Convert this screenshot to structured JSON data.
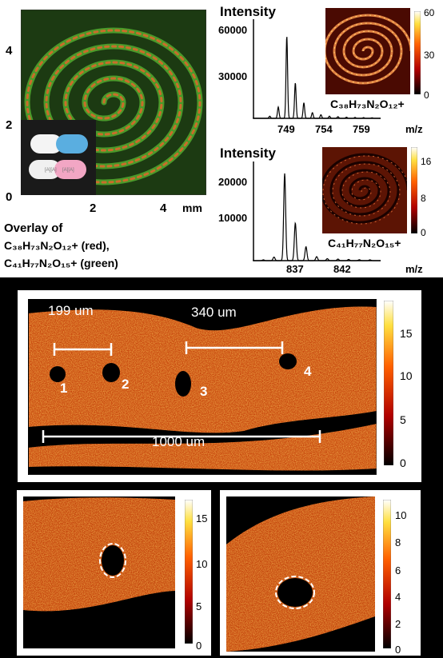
{
  "panel_a": {
    "y_ticks": [
      "4",
      "2",
      "0"
    ],
    "x_ticks": [
      "2",
      "4"
    ],
    "x_unit": "mm",
    "caption_line1": "Overlay of",
    "caption_line2": "C₃₈H₇₃N₂O₁₂+ (red),",
    "caption_line3": "C₄₁H₇₇N₂O₁₅+ (green)"
  },
  "spectrum_1": {
    "ylabel": "Intensity",
    "y_ticks": [
      "60000",
      "30000"
    ],
    "x_ticks": [
      "749",
      "754",
      "759"
    ],
    "x_unit": "m/z",
    "formula": "C₃₈H₇₃N₂O₁₂+",
    "colorbar_ticks": [
      "60",
      "30",
      "0"
    ]
  },
  "spectrum_2": {
    "ylabel": "Intensity",
    "y_ticks": [
      "20000",
      "10000"
    ],
    "x_ticks": [
      "837",
      "842"
    ],
    "x_unit": "m/z",
    "formula": "C₄₁H₇₇N₂O₁₅+",
    "colorbar_ticks": [
      "16",
      "8",
      "0"
    ]
  },
  "panel_b": {
    "scale_199": "199 um",
    "scale_340": "340 um",
    "scale_1000": "1000 um",
    "hole_labels": [
      "1",
      "2",
      "3",
      "4"
    ],
    "colorbar_ticks": [
      "15",
      "10",
      "5",
      "0"
    ]
  },
  "panel_c1": {
    "colorbar_ticks": [
      "15",
      "10",
      "5",
      "0"
    ]
  },
  "panel_c2": {
    "colorbar_ticks": [
      "10",
      "8",
      "6",
      "4",
      "2",
      "0"
    ]
  },
  "chart_data": [
    {
      "type": "line",
      "ylabel": "Intensity",
      "xlabel": "m/z",
      "xlim": [
        745,
        760
      ],
      "ylim": [
        0,
        70000
      ],
      "x": [
        746,
        747,
        748,
        749,
        750,
        751,
        752,
        753,
        754,
        755,
        756,
        757,
        758,
        759
      ],
      "values": [
        0,
        1500,
        8000,
        58000,
        25000,
        11000,
        4000,
        2500,
        1500,
        1200,
        800,
        600,
        500,
        400
      ]
    },
    {
      "type": "line",
      "ylabel": "Intensity",
      "xlabel": "m/z",
      "xlim": [
        834,
        846
      ],
      "ylim": [
        0,
        25000
      ],
      "x": [
        835,
        836,
        837,
        838,
        839,
        840,
        841,
        842,
        843,
        844,
        845
      ],
      "values": [
        200,
        900,
        22000,
        9500,
        3500,
        1000,
        500,
        400,
        300,
        250,
        200
      ]
    }
  ]
}
